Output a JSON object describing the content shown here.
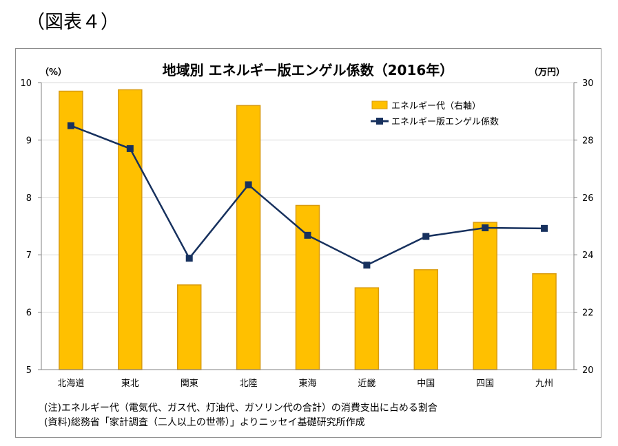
{
  "figure_label": "（図表４）",
  "notes": {
    "note": "(注)エネルギー代（電気代、ガス代、灯油代、ガソリン代の合計）の消費支出に占める割合",
    "source": "(資料)総務省「家計調査（二人以上の世帯）」よりニッセイ基礎研究所作成"
  },
  "chart_data": {
    "type": "bar+line",
    "title": "地域別 エネルギー版エンゲル係数（2016年）",
    "y_left_unit": "（%）",
    "y_right_unit": "（万円）",
    "y_left_range": [
      5,
      10
    ],
    "y_left_ticks": [
      "5",
      "6",
      "7",
      "8",
      "9",
      "10"
    ],
    "y_right_range": [
      20,
      30
    ],
    "y_right_ticks": [
      "20",
      "22",
      "24",
      "26",
      "28",
      "30"
    ],
    "grid": true,
    "legend_position": "top-right",
    "categories": [
      "北海道",
      "東北",
      "関東",
      "北陸",
      "東海",
      "近畿",
      "中国",
      "四国",
      "九州"
    ],
    "series": [
      {
        "name": "エネルギー代（右軸）",
        "type": "bar",
        "axis": "right",
        "color": "#FFC000",
        "border": "#D99B0F",
        "values": [
          29.7,
          29.75,
          22.95,
          29.2,
          25.72,
          22.85,
          23.48,
          25.13,
          23.34
        ]
      },
      {
        "name": "エネルギー版エンゲル係数",
        "type": "line",
        "axis": "left",
        "color": "#17315E",
        "values": [
          9.25,
          8.85,
          6.94,
          8.22,
          7.34,
          6.82,
          7.32,
          7.47,
          7.46
        ]
      }
    ]
  }
}
